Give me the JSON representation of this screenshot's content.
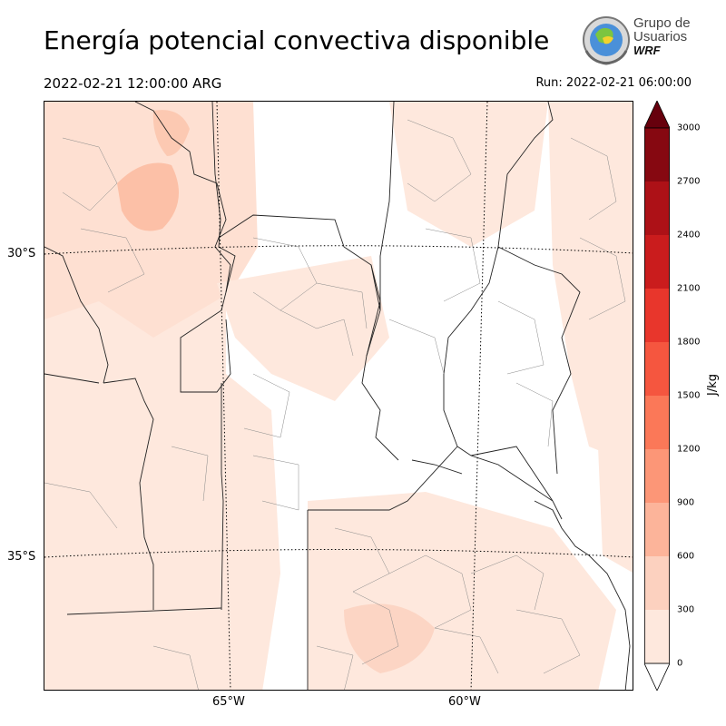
{
  "header": {
    "title": "Energía potencial convectiva disponible",
    "valid_time": "2022-02-21 12:00:00 ARG",
    "run_time": "Run: 2022-02-21 06:00:00"
  },
  "logo": {
    "line1": "Grupo de",
    "line2": "Usuarios",
    "line3": "WRF"
  },
  "map": {
    "latitude_labels": [
      "30°S",
      "35°S"
    ],
    "longitude_labels": [
      "65°W",
      "60°W"
    ],
    "field": "CAPE",
    "colors": {
      "border": "#222222",
      "admin": "#888888",
      "grid": "#000000"
    }
  },
  "colorbar": {
    "unit": "J/kg",
    "levels": [
      0,
      300,
      600,
      900,
      1200,
      1500,
      1800,
      2100,
      2400,
      2700,
      3000
    ],
    "tick_labels": [
      "0",
      "300",
      "600",
      "900",
      "1200",
      "1500",
      "1800",
      "2100",
      "2400",
      "2700",
      "3000"
    ],
    "colors": [
      "#fee8dd",
      "#fcd1bf",
      "#fcb49a",
      "#fc9677",
      "#fb7858",
      "#f5563f",
      "#e8362c",
      "#ca1c1d",
      "#ad1117",
      "#860811",
      "#67000d"
    ],
    "extend": "both"
  }
}
